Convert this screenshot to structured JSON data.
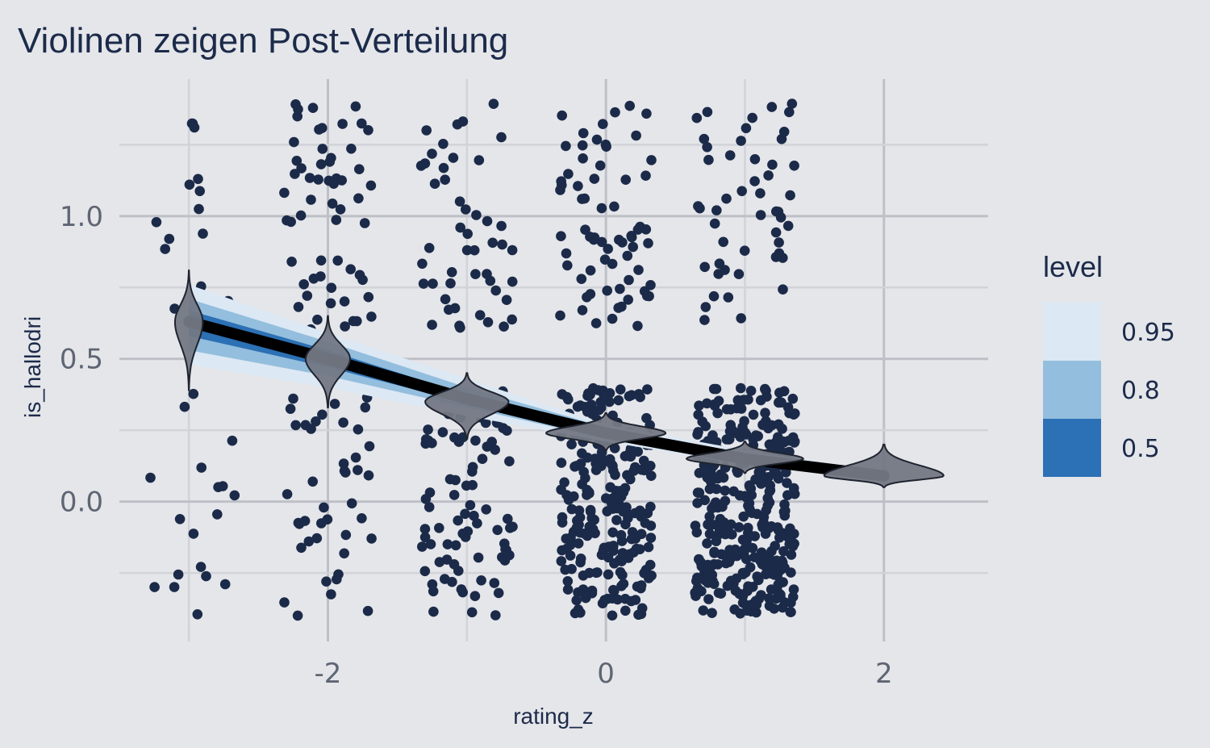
{
  "chart_data": {
    "type": "scatter",
    "title": "Violinen zeigen Post-Verteilung",
    "xlabel": "rating_z",
    "ylabel": "is_hallodri",
    "xlim": [
      -3.5,
      2.75
    ],
    "ylim": [
      -0.49,
      1.48
    ],
    "x_ticks": [
      -2,
      0,
      2
    ],
    "x_tick_labels": [
      "-2",
      "0",
      "2"
    ],
    "y_ticks": [
      0.0,
      0.5,
      1.0
    ],
    "y_tick_labels": [
      "0.0",
      "0.5",
      "1.0"
    ],
    "grid": true,
    "legend": {
      "title": "level",
      "position": "right",
      "entries": [
        {
          "label": "0.95",
          "color": "#DCE8F4"
        },
        {
          "label": "0.8",
          "color": "#93BEDD"
        },
        {
          "label": "0.5",
          "color": "#2C70B5"
        }
      ]
    },
    "colors": {
      "points": "#1B2A48",
      "line": "#000000",
      "violin_fill": "#737884",
      "violin_stroke": "#1F2430",
      "background": "#E5E6EA",
      "grid_major": "#BEC0C7",
      "grid_minor": "#D2D3D8"
    },
    "fit_line": {
      "x": [
        -3,
        -2,
        -1,
        0,
        1,
        2
      ],
      "y": [
        0.63,
        0.5,
        0.36,
        0.24,
        0.15,
        0.09
      ]
    },
    "intervals": {
      "x": [
        -3,
        -2,
        -1,
        0,
        1,
        2
      ],
      "level_0_95": {
        "lower": [
          0.48,
          0.4,
          0.3,
          0.21,
          0.13,
          0.075
        ],
        "upper": [
          0.76,
          0.59,
          0.43,
          0.27,
          0.18,
          0.105
        ]
      },
      "level_0_8": {
        "lower": [
          0.53,
          0.44,
          0.33,
          0.22,
          0.14,
          0.08
        ],
        "upper": [
          0.71,
          0.56,
          0.4,
          0.26,
          0.17,
          0.1
        ]
      },
      "level_0_5": {
        "lower": [
          0.58,
          0.47,
          0.345,
          0.23,
          0.145,
          0.085
        ],
        "upper": [
          0.67,
          0.53,
          0.375,
          0.25,
          0.16,
          0.095
        ]
      }
    },
    "violins": [
      {
        "x": -3,
        "center": 0.63,
        "min": 0.39,
        "max": 0.81,
        "half_width": 0.1
      },
      {
        "x": -2,
        "center": 0.5,
        "min": 0.33,
        "max": 0.65,
        "half_width": 0.16
      },
      {
        "x": -1,
        "center": 0.35,
        "min": 0.22,
        "max": 0.45,
        "half_width": 0.3
      },
      {
        "x": 0,
        "center": 0.24,
        "min": 0.18,
        "max": 0.31,
        "half_width": 0.43
      },
      {
        "x": 1,
        "center": 0.15,
        "min": 0.1,
        "max": 0.21,
        "half_width": 0.42
      },
      {
        "x": 2,
        "center": 0.09,
        "min": 0.05,
        "max": 0.2,
        "half_width": 0.43
      }
    ],
    "point_clusters": [
      {
        "x": -3,
        "jitter_x": 0.33,
        "n_top": 14,
        "n_bottom": 18,
        "top_range": [
          0.6,
          1.4
        ],
        "bottom_range": [
          -0.4,
          0.4
        ],
        "skew": 0
      },
      {
        "x": -2,
        "jitter_x": 0.33,
        "n_top": 58,
        "n_bottom": 42,
        "top_range": [
          0.6,
          1.4
        ],
        "bottom_range": [
          -0.4,
          0.4
        ],
        "skew": 0
      },
      {
        "x": -1,
        "jitter_x": 0.33,
        "n_top": 48,
        "n_bottom": 85,
        "top_range": [
          0.6,
          1.4
        ],
        "bottom_range": [
          -0.4,
          0.4
        ],
        "skew": 0
      },
      {
        "x": 0,
        "jitter_x": 0.33,
        "n_top": 68,
        "n_bottom": 230,
        "top_range": [
          0.6,
          1.4
        ],
        "bottom_range": [
          -0.4,
          0.4
        ],
        "skew": 0
      },
      {
        "x": 1,
        "jitter_x": 0.36,
        "n_top": 50,
        "n_bottom": 340,
        "top_range": [
          0.6,
          1.4
        ],
        "bottom_range": [
          -0.4,
          0.4
        ],
        "skew": 0
      }
    ]
  }
}
